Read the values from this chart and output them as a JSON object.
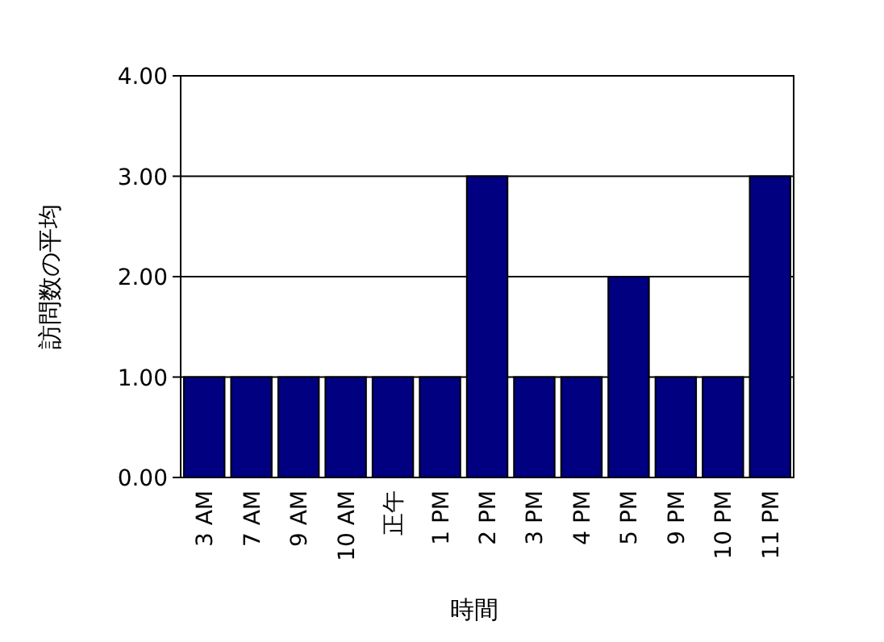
{
  "chart_data": {
    "type": "bar",
    "xlabel": "時間",
    "ylabel": "訪問数の平均",
    "categories": [
      "3 AM",
      "7 AM",
      "9 AM",
      "10 AM",
      "正午",
      "1 PM",
      "2 PM",
      "3 PM",
      "4 PM",
      "5 PM",
      "9 PM",
      "10 PM",
      "11 PM"
    ],
    "values": [
      1,
      1,
      1,
      1,
      1,
      1,
      3,
      1,
      1,
      2,
      1,
      1,
      3
    ],
    "color": "#000080",
    "ylim": [
      0,
      4
    ],
    "yticks": [
      {
        "value": 0,
        "label": "0.00"
      },
      {
        "value": 1,
        "label": "1.00"
      },
      {
        "value": 2,
        "label": "2.00"
      },
      {
        "value": 3,
        "label": "3.00"
      },
      {
        "value": 4,
        "label": "4.00"
      }
    ],
    "grid": "y"
  }
}
